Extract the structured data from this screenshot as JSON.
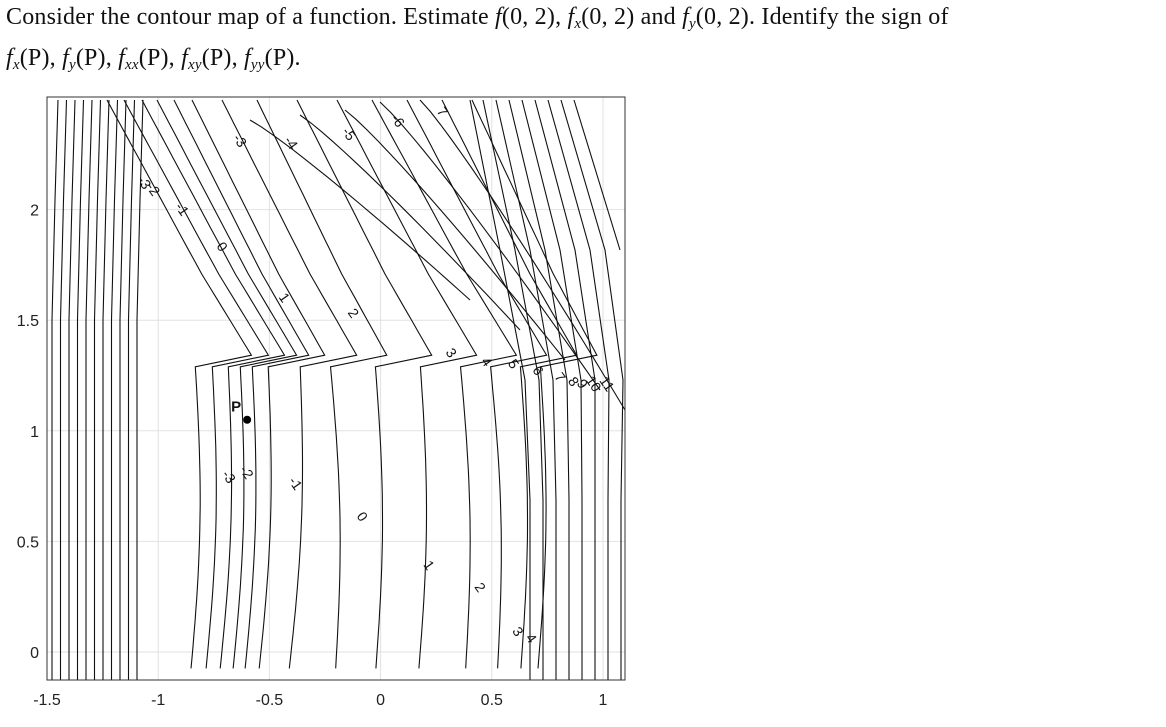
{
  "question": {
    "line1": [
      {
        "t": "Consider the contour map of a function. Estimate "
      },
      {
        "t": "f",
        "it": true
      },
      {
        "t": "(0, 2), "
      },
      {
        "t": "f",
        "it": true
      },
      {
        "sub": "x"
      },
      {
        "t": "(0, 2) and "
      },
      {
        "t": "f",
        "it": true
      },
      {
        "sub": "y"
      },
      {
        "t": "(0, 2). Identify the sign of"
      }
    ],
    "line2": [
      {
        "t": "f",
        "it": true
      },
      {
        "sub": "x"
      },
      {
        "t": "(P), "
      },
      {
        "t": "f",
        "it": true
      },
      {
        "sub": "y"
      },
      {
        "t": "(P), "
      },
      {
        "t": "f",
        "it": true
      },
      {
        "sub": "xx"
      },
      {
        "t": "(P), "
      },
      {
        "t": "f",
        "it": true
      },
      {
        "sub": "xy"
      },
      {
        "t": "(P), "
      },
      {
        "t": "f",
        "it": true
      },
      {
        "sub": "yy"
      },
      {
        "t": "(P)."
      }
    ]
  },
  "chart_data": {
    "type": "contour",
    "title": "",
    "xlabel": "",
    "ylabel": "",
    "xlim": [
      -1.5,
      1.1
    ],
    "ylim": [
      -0.1,
      2.4
    ],
    "xticks": [
      -1.5,
      -1,
      -0.5,
      0,
      0.5,
      1
    ],
    "xtick_labels": [
      "-1.5",
      "-1",
      "-0.5",
      "0",
      "0.5",
      "1"
    ],
    "yticks": [
      0,
      0.5,
      1,
      1.5,
      2
    ],
    "ytick_labels": [
      "0",
      "0.5",
      "1",
      "1.5",
      "2"
    ],
    "grid": true,
    "point": {
      "label": "P",
      "x": -0.6,
      "y": 1.05
    },
    "contour_levels_labeled": [
      -3,
      -2,
      -1,
      0,
      1,
      2,
      3,
      4,
      5,
      6,
      7,
      8,
      9,
      10,
      11
    ],
    "contour_labels": [
      {
        "text": "-3",
        "x": -0.65,
        "y": 2.3
      },
      {
        "text": "-4",
        "x": -0.42,
        "y": 2.29
      },
      {
        "text": "-5",
        "x": -0.16,
        "y": 2.33
      },
      {
        "text": "-6",
        "x": 0.06,
        "y": 2.39
      },
      {
        "text": "7",
        "x": 0.26,
        "y": 2.43
      },
      {
        "text": "-2",
        "x": -1.04,
        "y": 2.08
      },
      {
        "text": "-3",
        "x": -1.08,
        "y": 2.11
      },
      {
        "text": "-1",
        "x": -0.91,
        "y": 1.99
      },
      {
        "text": "0",
        "x": -0.73,
        "y": 1.82
      },
      {
        "text": "1",
        "x": -0.45,
        "y": 1.59
      },
      {
        "text": "2",
        "x": -0.14,
        "y": 1.52
      },
      {
        "text": "3",
        "x": 0.3,
        "y": 1.34
      },
      {
        "text": "4",
        "x": 0.46,
        "y": 1.3
      },
      {
        "text": "5",
        "x": 0.58,
        "y": 1.29
      },
      {
        "text": "6",
        "x": 0.69,
        "y": 1.26
      },
      {
        "text": "7",
        "x": 0.79,
        "y": 1.23
      },
      {
        "text": "8",
        "x": 0.85,
        "y": 1.21
      },
      {
        "text": "9",
        "x": 0.89,
        "y": 1.2
      },
      {
        "text": "10",
        "x": 0.94,
        "y": 1.2
      },
      {
        "text": "11",
        "x": 1.0,
        "y": 1.2
      },
      {
        "text": "-3",
        "x": -0.7,
        "y": 0.78
      },
      {
        "text": "-2",
        "x": -0.62,
        "y": 0.8
      },
      {
        "text": "-1",
        "x": -0.4,
        "y": 0.75
      },
      {
        "text": "0",
        "x": -0.1,
        "y": 0.6
      },
      {
        "text": "1",
        "x": 0.2,
        "y": 0.38
      },
      {
        "text": "2",
        "x": 0.43,
        "y": 0.28
      },
      {
        "text": "3",
        "x": 0.6,
        "y": 0.08
      },
      {
        "text": "4",
        "x": 0.66,
        "y": 0.05
      }
    ]
  }
}
